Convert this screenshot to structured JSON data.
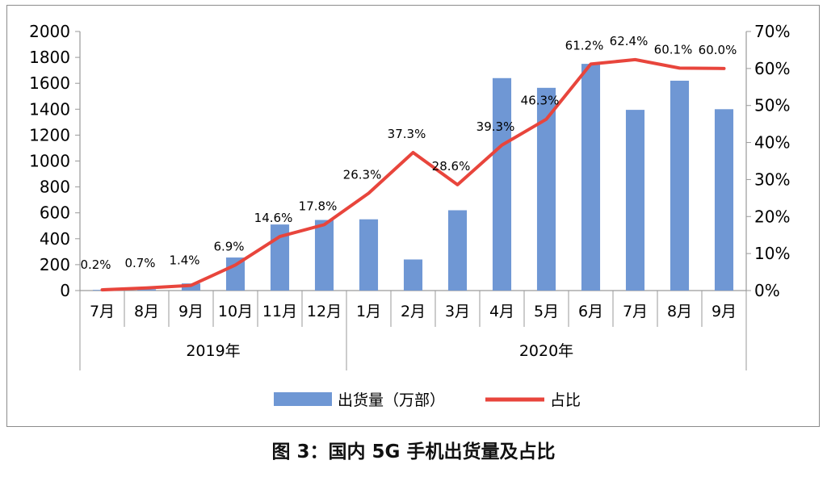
{
  "caption": "图 3：国内 5G 手机出货量及占比",
  "chart_data": {
    "type": "bar",
    "categories": [
      "7月",
      "8月",
      "9月",
      "10月",
      "11月",
      "12月",
      "1月",
      "2月",
      "3月",
      "4月",
      "5月",
      "6月",
      "7月",
      "8月",
      "9月"
    ],
    "groups": [
      {
        "label": "2019年",
        "count": 6
      },
      {
        "label": "2020年",
        "count": 9
      }
    ],
    "series": [
      {
        "name": "出货量（万部）",
        "kind": "bar",
        "axis": "left",
        "color": "#6f97d4",
        "values": [
          5,
          10,
          55,
          255,
          510,
          545,
          550,
          240,
          620,
          1640,
          1565,
          1750,
          1395,
          1620,
          1400
        ]
      },
      {
        "name": "占比",
        "kind": "line",
        "axis": "right",
        "color": "#e8453c",
        "values": [
          0.2,
          0.7,
          1.4,
          6.9,
          14.6,
          17.8,
          26.3,
          37.3,
          28.6,
          39.3,
          46.3,
          61.2,
          62.4,
          60.1,
          60.0
        ],
        "labels": [
          "0.2%",
          "0.7%",
          "1.4%",
          "6.9%",
          "14.6%",
          "17.8%",
          "26.3%",
          "37.3%",
          "28.6%",
          "39.3%",
          "46.3%",
          "61.2%",
          "62.4%",
          "60.1%",
          "60.0%"
        ]
      }
    ],
    "ylim_left": [
      0,
      2000
    ],
    "yticks_left": [
      "0",
      "200",
      "400",
      "600",
      "800",
      "1000",
      "1200",
      "1400",
      "1600",
      "1800",
      "2000"
    ],
    "ylim_right": [
      0,
      70
    ],
    "yticks_right": [
      "0%",
      "10%",
      "20%",
      "30%",
      "40%",
      "50%",
      "60%",
      "70%"
    ],
    "legend_position": "bottom",
    "grid": false
  }
}
